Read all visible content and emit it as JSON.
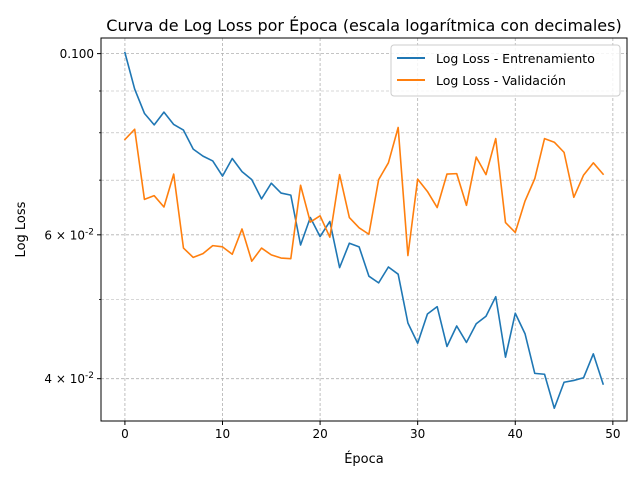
{
  "chart_data": {
    "type": "line",
    "title": "Curva de Log Loss por Época (escala logarítmica con decimales)",
    "xlabel": "Época",
    "ylabel": "Log Loss",
    "yscale": "log",
    "xlim": [
      -2.45,
      51.45
    ],
    "ylim": [
      0.0355,
      0.1045
    ],
    "grid": true,
    "legend_position": "top-right",
    "xticks": [
      0,
      10,
      20,
      30,
      40,
      50
    ],
    "xtick_labels": [
      "0",
      "10",
      "20",
      "30",
      "40",
      "50"
    ],
    "yticks": [
      0.04,
      0.06,
      0.1
    ],
    "ytick_labels": [
      "4 × 10^-2",
      "6 × 10^-2",
      "0.100"
    ],
    "yticks_minor": [
      0.05,
      0.07,
      0.08,
      0.09
    ],
    "x": [
      0,
      1,
      2,
      3,
      4,
      5,
      6,
      7,
      8,
      9,
      10,
      11,
      12,
      13,
      14,
      15,
      16,
      17,
      18,
      19,
      20,
      21,
      22,
      23,
      24,
      25,
      26,
      27,
      28,
      29,
      30,
      31,
      32,
      33,
      34,
      35,
      36,
      37,
      38,
      39,
      40,
      41,
      42,
      43,
      44,
      45,
      46,
      47,
      48,
      49
    ],
    "series": [
      {
        "name": "Log Loss - Entrenamiento",
        "color": "#1f77b4",
        "values": [
          0.1003,
          0.0905,
          0.0845,
          0.0818,
          0.0848,
          0.0819,
          0.0806,
          0.0764,
          0.0749,
          0.0739,
          0.0708,
          0.0744,
          0.0717,
          0.0701,
          0.0664,
          0.0694,
          0.0675,
          0.0671,
          0.0583,
          0.063,
          0.0597,
          0.0623,
          0.0547,
          0.0586,
          0.058,
          0.0534,
          0.0524,
          0.0548,
          0.0537,
          0.0468,
          0.0442,
          0.048,
          0.049,
          0.0438,
          0.0464,
          0.0443,
          0.0467,
          0.0477,
          0.0504,
          0.0425,
          0.0481,
          0.0454,
          0.0406,
          0.0405,
          0.0368,
          0.0396,
          0.0398,
          0.0401,
          0.0429,
          0.0394
        ]
      },
      {
        "name": "Log Loss - Validación",
        "color": "#ff7f0e",
        "values": [
          0.0785,
          0.0808,
          0.0663,
          0.067,
          0.0649,
          0.0712,
          0.0578,
          0.0563,
          0.0569,
          0.0582,
          0.058,
          0.0568,
          0.061,
          0.0557,
          0.0578,
          0.0567,
          0.0562,
          0.0561,
          0.069,
          0.0622,
          0.0633,
          0.0596,
          0.0711,
          0.063,
          0.0612,
          0.0601,
          0.0701,
          0.0735,
          0.0812,
          0.0566,
          0.0702,
          0.0678,
          0.0648,
          0.0712,
          0.0713,
          0.0652,
          0.0747,
          0.0711,
          0.0787,
          0.0621,
          0.0604,
          0.066,
          0.0703,
          0.0787,
          0.0779,
          0.0757,
          0.0667,
          0.071,
          0.0735,
          0.0712
        ]
      }
    ]
  }
}
